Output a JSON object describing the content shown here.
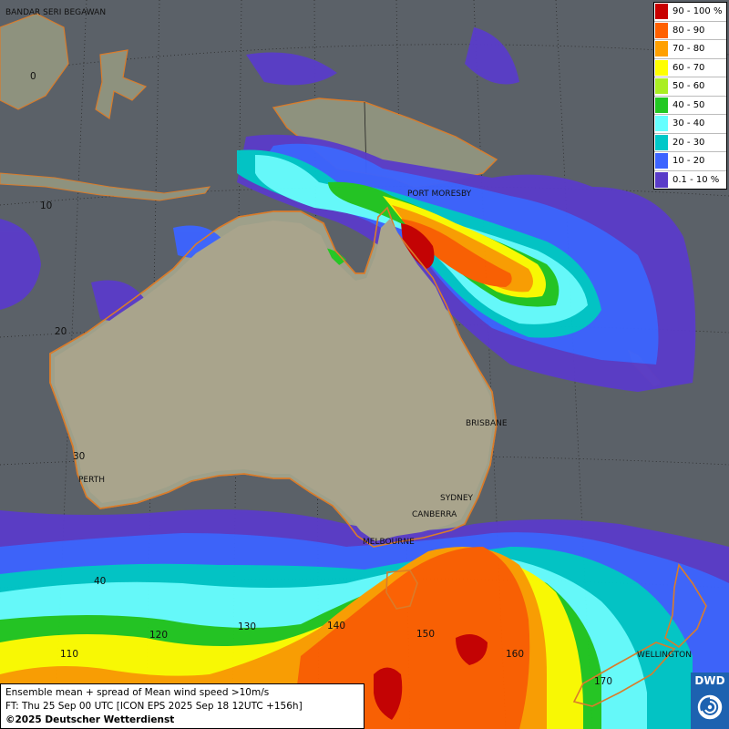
{
  "legend": {
    "items": [
      {
        "label": "90 - 100 %",
        "color": "#c80000"
      },
      {
        "label": "80 - 90",
        "color": "#ff6000"
      },
      {
        "label": "70 - 80",
        "color": "#ffa000"
      },
      {
        "label": "60 - 70",
        "color": "#ffff00"
      },
      {
        "label": "50 - 60",
        "color": "#aaee22"
      },
      {
        "label": "40 - 50",
        "color": "#22c822"
      },
      {
        "label": "30 - 40",
        "color": "#66ffff"
      },
      {
        "label": "20 - 30",
        "color": "#00c8c8"
      },
      {
        "label": "10 - 20",
        "color": "#3c64ff"
      },
      {
        "label": "0.1 - 10 %",
        "color": "#5a3cc8"
      }
    ]
  },
  "cities": {
    "bandar": "BANDAR SERI BEGAWAN",
    "port_moresby": "PORT MORESBY",
    "brisbane": "BRISBANE",
    "perth": "PERTH",
    "sydney": "SYDNEY",
    "canberra": "CANBERRA",
    "melbourne": "MELBOURNE",
    "wellington": "WELLINGTON"
  },
  "grid_labels": {
    "lat_0": "0",
    "lat_10": "10",
    "lat_20": "20",
    "lat_30": "30",
    "lat_40": "40",
    "lon_110": "110",
    "lon_120": "120",
    "lon_130": "130",
    "lon_140": "140",
    "lon_150": "150",
    "lon_160": "160",
    "lon_170": "170"
  },
  "info": {
    "line1": "Ensemble mean + spread of Mean wind speed >10m/s",
    "line2": "FT: Thu 25 Sep 00 UTC [ICON EPS 2025 Sep 18 12UTC +156h]",
    "credit": "©2025 Deutscher Wetterdienst"
  },
  "logo": {
    "text": "DWD",
    "color": "#1d62b0"
  }
}
